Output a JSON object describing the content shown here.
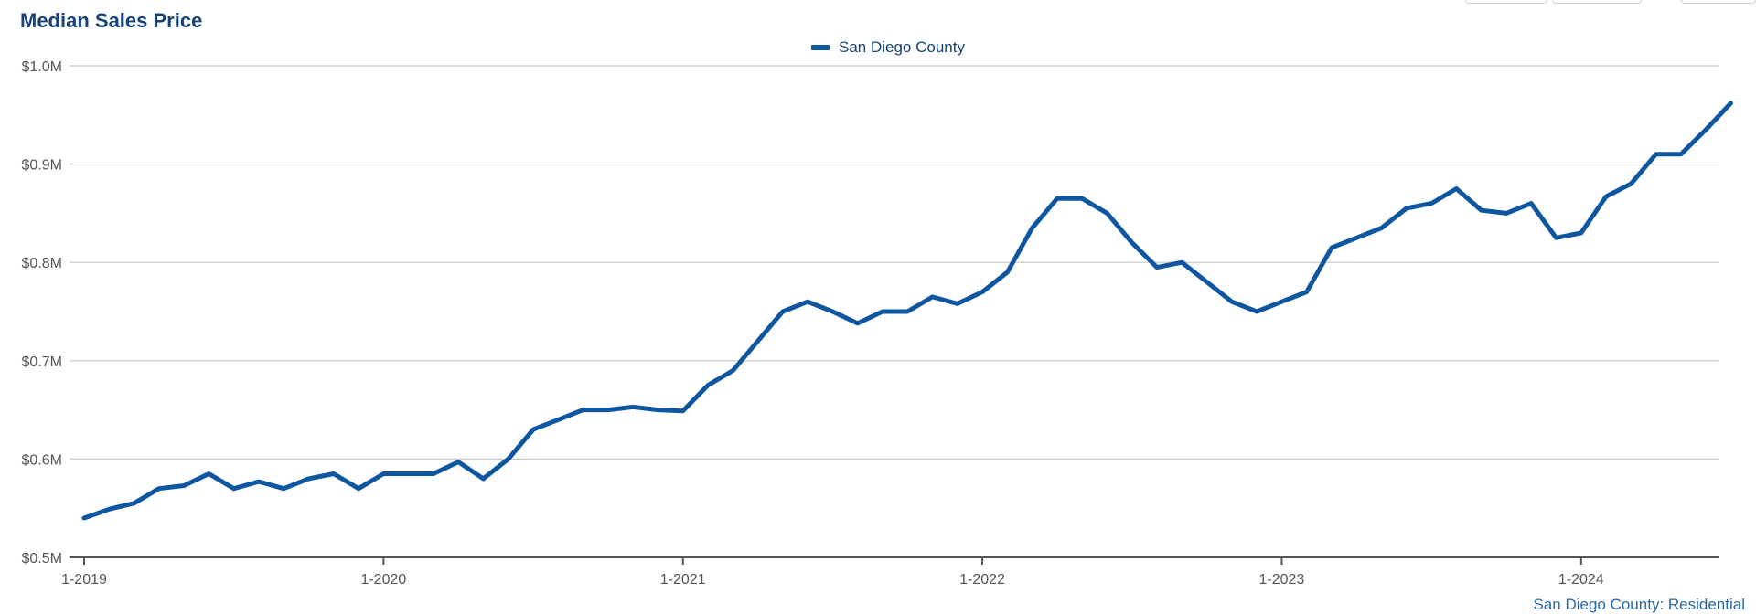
{
  "chart_title": "Median Sales Price",
  "footer_note": "San Diego County: Residential",
  "colors": {
    "series": "#0e57a0",
    "title": "#17427a",
    "grid": "#c8c8c8",
    "axis": "#555555"
  },
  "chart_data": {
    "type": "line",
    "title": "Median Sales Price",
    "xlabel": "",
    "ylabel": "",
    "ylim": [
      500000,
      1000000
    ],
    "y_ticks": [
      500000,
      600000,
      700000,
      800000,
      900000,
      1000000
    ],
    "y_tick_labels": [
      "$0.5M",
      "$0.6M",
      "$0.7M",
      "$0.8M",
      "$0.9M",
      "$1.0M"
    ],
    "x_tick_labels": [
      "1-2019",
      "1-2020",
      "1-2021",
      "1-2022",
      "1-2023",
      "1-2024"
    ],
    "grid": true,
    "legend_position": "top-center",
    "x": [
      "2019-01",
      "2019-02",
      "2019-03",
      "2019-04",
      "2019-05",
      "2019-06",
      "2019-07",
      "2019-08",
      "2019-09",
      "2019-10",
      "2019-11",
      "2019-12",
      "2020-01",
      "2020-02",
      "2020-03",
      "2020-04",
      "2020-05",
      "2020-06",
      "2020-07",
      "2020-08",
      "2020-09",
      "2020-10",
      "2020-11",
      "2020-12",
      "2021-01",
      "2021-02",
      "2021-03",
      "2021-04",
      "2021-05",
      "2021-06",
      "2021-07",
      "2021-08",
      "2021-09",
      "2021-10",
      "2021-11",
      "2021-12",
      "2022-01",
      "2022-02",
      "2022-03",
      "2022-04",
      "2022-05",
      "2022-06",
      "2022-07",
      "2022-08",
      "2022-09",
      "2022-10",
      "2022-11",
      "2022-12",
      "2023-01",
      "2023-02",
      "2023-03",
      "2023-04",
      "2023-05",
      "2023-06",
      "2023-07",
      "2023-08",
      "2023-09",
      "2023-10",
      "2023-11",
      "2023-12",
      "2024-01",
      "2024-02",
      "2024-03",
      "2024-04",
      "2024-05",
      "2024-06",
      "2024-07"
    ],
    "series": [
      {
        "name": "San Diego County",
        "values": [
          540000,
          549000,
          555000,
          570000,
          573000,
          585000,
          570000,
          577000,
          570000,
          580000,
          585000,
          570000,
          585000,
          585000,
          585000,
          597000,
          580000,
          600000,
          630000,
          640000,
          650000,
          650000,
          653000,
          650000,
          649000,
          675000,
          690000,
          720000,
          750000,
          760000,
          750000,
          738000,
          750000,
          750000,
          765000,
          758000,
          770000,
          790000,
          835000,
          865000,
          865000,
          850000,
          820000,
          795000,
          800000,
          780000,
          760000,
          750000,
          760000,
          770000,
          815000,
          825000,
          835000,
          855000,
          860000,
          875000,
          853000,
          850000,
          860000,
          825000,
          830000,
          867000,
          880000,
          910000,
          910000,
          935000,
          962000
        ]
      }
    ]
  }
}
